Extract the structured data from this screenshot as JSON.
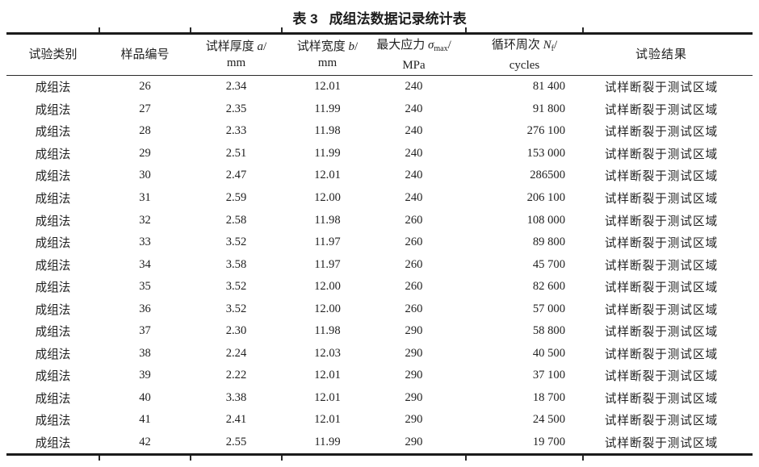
{
  "colors": {
    "background": "#ffffff",
    "text": "#212121",
    "rule": "#1b1b1b"
  },
  "table": {
    "title": {
      "label": "表 3",
      "text": "成组法数据记录统计表"
    },
    "header": {
      "category": "试验类别",
      "sample_no": "样品编号",
      "thickness": {
        "prefix": "试样厚度 ",
        "symbol": "a",
        "slash": "/",
        "unit": "mm"
      },
      "width_col": {
        "prefix": "试样宽度 ",
        "symbol": "b",
        "slash": "/",
        "unit": "mm"
      },
      "stress": {
        "prefix": "最大应力 ",
        "symbol": "σ",
        "sub": "max",
        "slash": "/",
        "unit": "MPa"
      },
      "cycles": {
        "prefix": "循环周次 ",
        "symbol": "N",
        "sub": "f",
        "slash": "/",
        "unit": "cycles"
      },
      "result": "试验结果"
    },
    "rows": [
      {
        "category": "成组法",
        "sample_no": "26",
        "thickness": "2.34",
        "width": "12.01",
        "stress": "240",
        "cycles": "81 400",
        "result": "试样断裂于测试区域"
      },
      {
        "category": "成组法",
        "sample_no": "27",
        "thickness": "2.35",
        "width": "11.99",
        "stress": "240",
        "cycles": "91 800",
        "result": "试样断裂于测试区域"
      },
      {
        "category": "成组法",
        "sample_no": "28",
        "thickness": "2.33",
        "width": "11.98",
        "stress": "240",
        "cycles": "276 100",
        "result": "试样断裂于测试区域"
      },
      {
        "category": "成组法",
        "sample_no": "29",
        "thickness": "2.51",
        "width": "11.99",
        "stress": "240",
        "cycles": "153 000",
        "result": "试样断裂于测试区域"
      },
      {
        "category": "成组法",
        "sample_no": "30",
        "thickness": "2.47",
        "width": "12.01",
        "stress": "240",
        "cycles": "286500",
        "result": "试样断裂于测试区域"
      },
      {
        "category": "成组法",
        "sample_no": "31",
        "thickness": "2.59",
        "width": "12.00",
        "stress": "240",
        "cycles": "206 100",
        "result": "试样断裂于测试区域"
      },
      {
        "category": "成组法",
        "sample_no": "32",
        "thickness": "2.58",
        "width": "11.98",
        "stress": "260",
        "cycles": "108 000",
        "result": "试样断裂于测试区域"
      },
      {
        "category": "成组法",
        "sample_no": "33",
        "thickness": "3.52",
        "width": "11.97",
        "stress": "260",
        "cycles": "89 800",
        "result": "试样断裂于测试区域"
      },
      {
        "category": "成组法",
        "sample_no": "34",
        "thickness": "3.58",
        "width": "11.97",
        "stress": "260",
        "cycles": "45 700",
        "result": "试样断裂于测试区域"
      },
      {
        "category": "成组法",
        "sample_no": "35",
        "thickness": "3.52",
        "width": "12.00",
        "stress": "260",
        "cycles": "82 600",
        "result": "试样断裂于测试区域"
      },
      {
        "category": "成组法",
        "sample_no": "36",
        "thickness": "3.52",
        "width": "12.00",
        "stress": "260",
        "cycles": "57 000",
        "result": "试样断裂于测试区域"
      },
      {
        "category": "成组法",
        "sample_no": "37",
        "thickness": "2.30",
        "width": "11.98",
        "stress": "290",
        "cycles": "58 800",
        "result": "试样断裂于测试区域"
      },
      {
        "category": "成组法",
        "sample_no": "38",
        "thickness": "2.24",
        "width": "12.03",
        "stress": "290",
        "cycles": "40 500",
        "result": "试样断裂于测试区域"
      },
      {
        "category": "成组法",
        "sample_no": "39",
        "thickness": "2.22",
        "width": "12.01",
        "stress": "290",
        "cycles": "37 100",
        "result": "试样断裂于测试区域"
      },
      {
        "category": "成组法",
        "sample_no": "40",
        "thickness": "3.38",
        "width": "12.01",
        "stress": "290",
        "cycles": "18 700",
        "result": "试样断裂于测试区域"
      },
      {
        "category": "成组法",
        "sample_no": "41",
        "thickness": "2.41",
        "width": "12.01",
        "stress": "290",
        "cycles": "24 500",
        "result": "试样断裂于测试区域"
      },
      {
        "category": "成组法",
        "sample_no": "42",
        "thickness": "2.55",
        "width": "11.99",
        "stress": "290",
        "cycles": "19 700",
        "result": "试样断裂于测试区域"
      }
    ]
  }
}
